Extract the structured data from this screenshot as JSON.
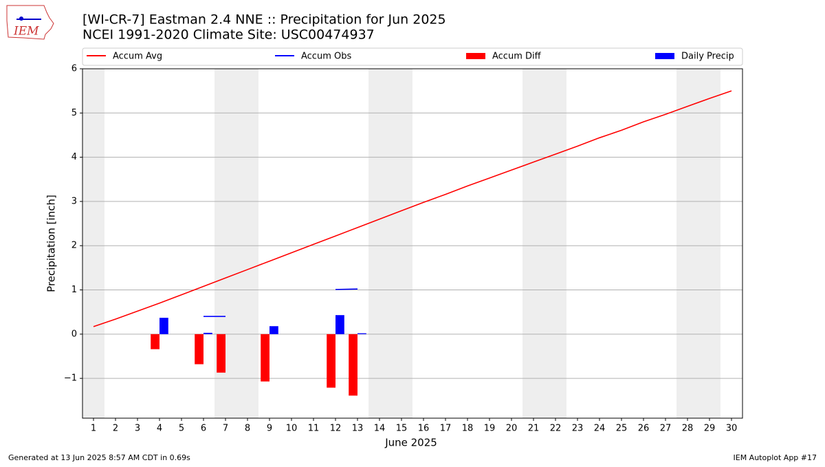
{
  "chart_data": {
    "type": "combo",
    "title": "[WI-CR-7] Eastman 2.4 NNE :: Precipitation for Jun 2025",
    "subtitle": "NCEI 1991-2020 Climate Site: USC00474937",
    "logo": "IEM",
    "x_label": "June 2025",
    "y_label": "Precipitation [inch]",
    "footer_left": "Generated at 13 Jun 2025 8:57 AM CDT in 0.69s",
    "footer_right": "IEM Autoplot App #17",
    "x": [
      1,
      2,
      3,
      4,
      5,
      6,
      7,
      8,
      9,
      10,
      11,
      12,
      13,
      14,
      15,
      16,
      17,
      18,
      19,
      20,
      21,
      22,
      23,
      24,
      25,
      26,
      27,
      28,
      29,
      30
    ],
    "xlim": [
      0.5,
      30.5
    ],
    "xticks": [
      1,
      2,
      3,
      4,
      5,
      6,
      7,
      8,
      9,
      10,
      11,
      12,
      13,
      14,
      15,
      16,
      17,
      18,
      19,
      20,
      21,
      22,
      23,
      24,
      25,
      26,
      27,
      28,
      29,
      30
    ],
    "ylim": [
      -1.9,
      6
    ],
    "yticks": [
      {
        "value": -1,
        "label": "−1"
      },
      0,
      1,
      2,
      3,
      4,
      5,
      6
    ],
    "grid": true,
    "legend": "top",
    "shaded_ranges": [
      [
        0.5,
        1.5
      ],
      [
        6.5,
        8.5
      ],
      [
        13.5,
        15.5
      ],
      [
        20.5,
        22.5
      ],
      [
        27.5,
        29.5
      ]
    ],
    "shade_color": "#eeeeee",
    "series": [
      {
        "name": "Accum Avg",
        "type": "line",
        "color": "#ff0000",
        "values": [
          0.17,
          0.34,
          0.52,
          0.7,
          0.89,
          1.08,
          1.27,
          1.46,
          1.65,
          1.84,
          2.03,
          2.22,
          2.41,
          2.6,
          2.79,
          2.98,
          3.16,
          3.35,
          3.53,
          3.71,
          3.89,
          4.07,
          4.25,
          4.44,
          4.61,
          4.8,
          4.97,
          5.15,
          5.33,
          5.5
        ]
      },
      {
        "name": "Accum Obs",
        "type": "line",
        "color": "#0000ff",
        "values": [
          null,
          null,
          null,
          null,
          null,
          0.4,
          0.4,
          null,
          null,
          null,
          null,
          1.01,
          1.02,
          null,
          null,
          null,
          null,
          null,
          null,
          null,
          null,
          null,
          null,
          null,
          null,
          null,
          null,
          null,
          null,
          null
        ]
      },
      {
        "name": "Accum Diff",
        "type": "bar",
        "side": "left",
        "color": "#ff0000",
        "values": [
          null,
          null,
          null,
          -0.34,
          null,
          -0.68,
          -0.87,
          null,
          -1.07,
          null,
          null,
          -1.21,
          -1.39,
          null,
          null,
          null,
          null,
          null,
          null,
          null,
          null,
          null,
          null,
          null,
          null,
          null,
          null,
          null,
          null,
          null
        ]
      },
      {
        "name": "Daily Precip",
        "type": "bar",
        "side": "right",
        "color": "#0000ff",
        "values": [
          null,
          null,
          null,
          0.37,
          null,
          0.03,
          null,
          null,
          0.18,
          null,
          null,
          0.43,
          0.02,
          null,
          null,
          null,
          null,
          null,
          null,
          null,
          null,
          null,
          null,
          null,
          null,
          null,
          null,
          null,
          null,
          null
        ]
      }
    ]
  }
}
